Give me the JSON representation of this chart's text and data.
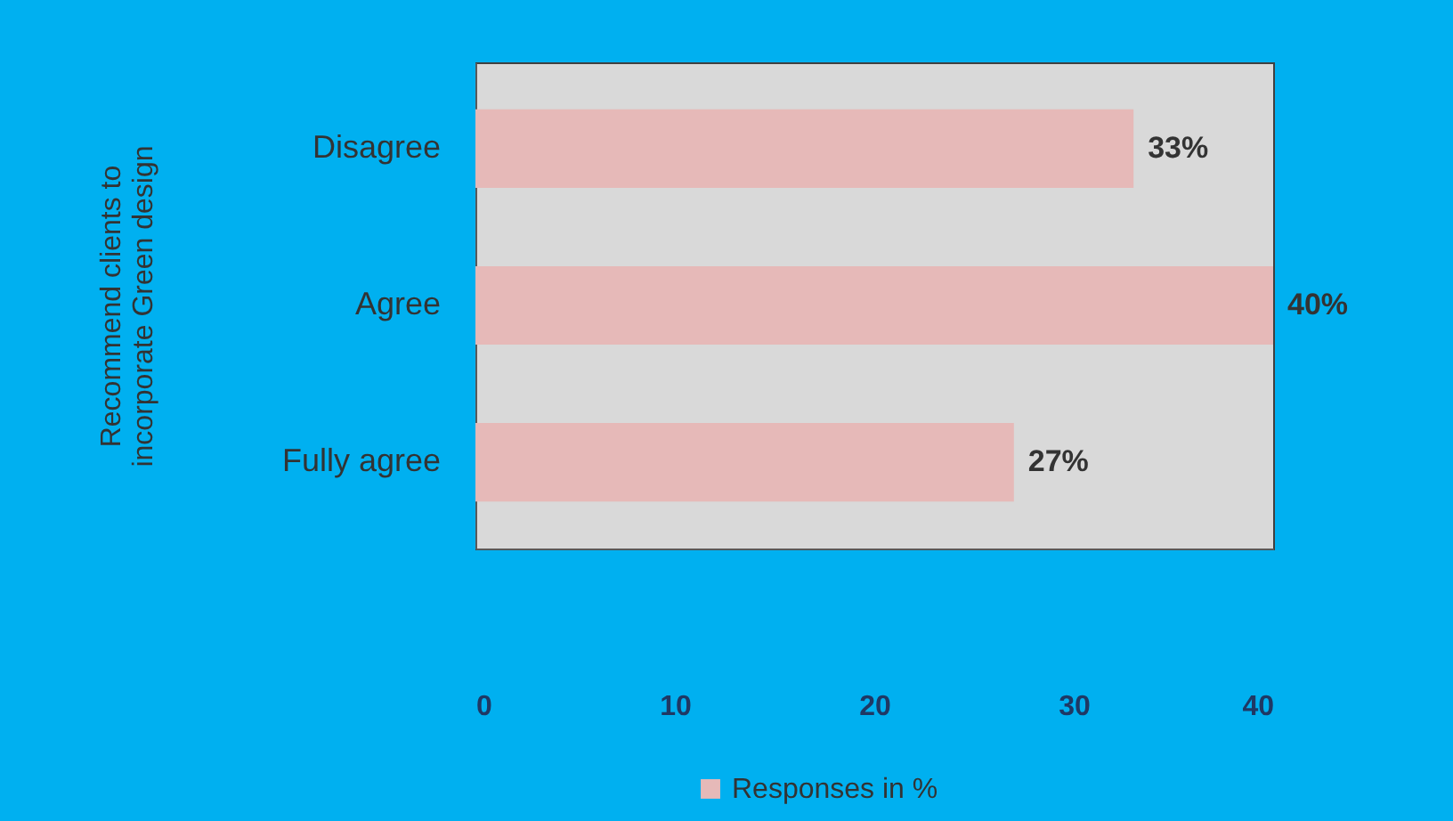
{
  "chart_data": {
    "type": "bar",
    "orientation": "horizontal",
    "ylabel": "Recommend clients to incorporate Green design",
    "categories": [
      "Disagree",
      "Agree",
      "Fully agree"
    ],
    "series": [
      {
        "name": "Responses in %",
        "color": "#e6b9b8",
        "values": [
          33,
          40,
          27
        ],
        "value_labels": [
          "33%",
          "40%",
          "27%"
        ]
      }
    ],
    "xlim": [
      0,
      40
    ],
    "xticks": [
      0,
      10,
      20,
      30,
      40
    ],
    "grid": false,
    "legend": "bottom"
  }
}
